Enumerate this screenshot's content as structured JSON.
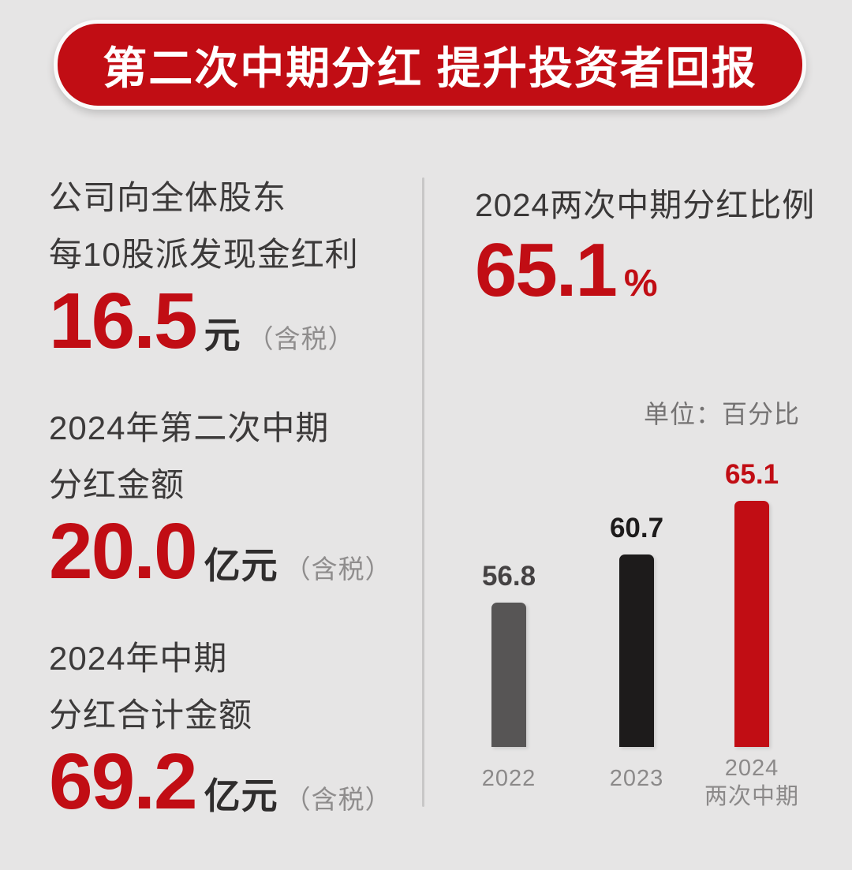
{
  "header": {
    "title": "第二次中期分红 提升投资者回报"
  },
  "left_panel": {
    "blocks": [
      {
        "line1": "公司向全体股东",
        "line2": "每10股派发现金红利",
        "value": "16.5",
        "unit": "元",
        "note": "（含税）"
      },
      {
        "line1": "2024年第二次中期",
        "line2": "分红金额",
        "value": "20.0",
        "unit": "亿元",
        "note": "（含税）"
      },
      {
        "line1": "2024年中期",
        "line2": "分红合计金额",
        "value": "69.2",
        "unit": "亿元",
        "note": "（含税）"
      }
    ]
  },
  "right_panel": {
    "title": "2024两次中期分红比例",
    "value": "65.1",
    "percent_sign": "%"
  },
  "chart_data": {
    "type": "bar",
    "title": "2024两次中期分红比例",
    "unit_label": "单位：百分比",
    "categories": [
      "2022",
      "2023",
      "2024"
    ],
    "category_sublabels": [
      "",
      "",
      "两次中期"
    ],
    "values": [
      56.8,
      60.7,
      65.1
    ],
    "value_labels": [
      "56.8",
      "60.7",
      "65.1"
    ],
    "bar_colors": [
      "#575555",
      "#1d1b1b",
      "#c10d14"
    ],
    "value_label_colors": [
      "#454243",
      "#1d1b1b",
      "#c10d14"
    ],
    "ylim": [
      45,
      70
    ],
    "grid": false,
    "legend": false,
    "xlabel": "",
    "ylabel": ""
  },
  "colors": {
    "background": "#e6e5e5",
    "banner_red": "#c10d14",
    "accent_red": "#c10d14",
    "dark_text": "#3c3a3a",
    "unit_text": "#2f2d2d",
    "muted_text": "#8f8d8d",
    "chart_axis_text": "#8b8989",
    "unit_note_text": "#757373",
    "divider": "#c8c7c7"
  }
}
